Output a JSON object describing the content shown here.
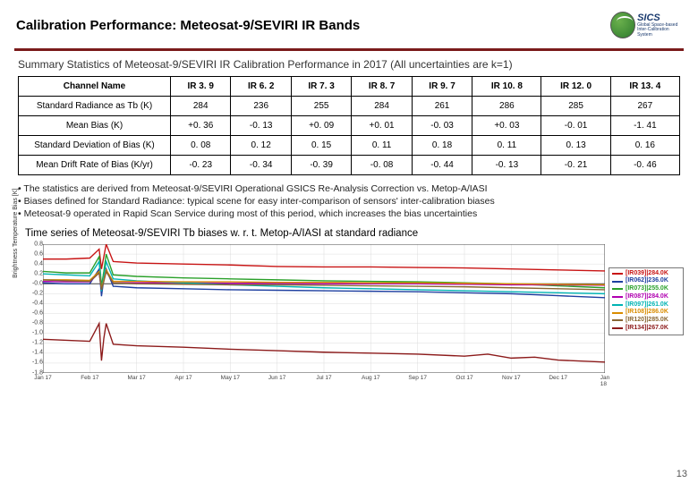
{
  "title": "Calibration Performance: Meteosat-9/SEVIRI IR Bands",
  "logo": {
    "acronym": "SICS",
    "sub1": "Global Space-based",
    "sub2": "Inter-Calibration System"
  },
  "subtitle": "Summary Statistics of Meteosat-9/SEVIRI IR Calibration Performance in 2017 (All uncertainties are k=1)",
  "table": {
    "header": [
      "Channel Name",
      "IR 3. 9",
      "IR 6. 2",
      "IR 7. 3",
      "IR 8. 7",
      "IR 9. 7",
      "IR 10. 8",
      "IR 12. 0",
      "IR 13. 4"
    ],
    "rows": [
      [
        "Standard Radiance as Tb (K)",
        "284",
        "236",
        "255",
        "284",
        "261",
        "286",
        "285",
        "267"
      ],
      [
        "Mean Bias (K)",
        "+0. 36",
        "-0. 13",
        "+0. 09",
        "+0. 01",
        "-0. 03",
        "+0. 03",
        "-0. 01",
        "-1. 41"
      ],
      [
        "Standard Deviation of Bias (K)",
        "0. 08",
        "0. 12",
        "0. 15",
        "0. 11",
        "0. 18",
        "0. 11",
        "0. 13",
        "0. 16"
      ],
      [
        "Mean Drift Rate of Bias (K/yr)",
        "-0. 23",
        "-0. 34",
        "-0. 39",
        "-0. 08",
        "-0. 44",
        "-0. 13",
        "-0. 21",
        "-0. 46"
      ]
    ]
  },
  "notes": [
    "The statistics are derived from Meteosat-9/SEVIRI Operational GSICS Re-Analysis Correction vs. Metop-A/IASI",
    "Biases defined for Standard Radiance: typical scene for easy inter-comparison of sensors' inter-calibration biases",
    "Meteosat-9 operated in Rapid Scan Service during most of this period, which increases the bias uncertainties"
  ],
  "chart": {
    "caption": "Time series of Meteosat-9/SEVIRI Tb biases w. r. t. Metop-A/IASI at standard radiance",
    "ylabel": "Brightness Temperature Bias [K]",
    "ylim": [
      -1.8,
      0.8
    ],
    "ytick_step": 0.2,
    "xlim": [
      0,
      12
    ],
    "xticks": [
      "Jan 17",
      "Feb 17",
      "Mar 17",
      "Apr 17",
      "May 17",
      "Jun 17",
      "Jul 17",
      "Aug 17",
      "Sep 17",
      "Oct 17",
      "Nov 17",
      "Dec 17",
      "Jan 18"
    ],
    "grid_color": "#dddddd",
    "axis_color": "#444444",
    "lines": [
      {
        "label": "[IR039]|284.0K",
        "color": "#c81414",
        "data": [
          [
            0,
            0.5
          ],
          [
            0.5,
            0.5
          ],
          [
            1.0,
            0.52
          ],
          [
            1.2,
            0.7
          ],
          [
            1.25,
            0.3
          ],
          [
            1.3,
            0.55
          ],
          [
            1.35,
            0.8
          ],
          [
            1.5,
            0.45
          ],
          [
            2,
            0.42
          ],
          [
            3,
            0.4
          ],
          [
            4,
            0.38
          ],
          [
            5,
            0.35
          ],
          [
            6,
            0.34
          ],
          [
            7,
            0.34
          ],
          [
            8,
            0.33
          ],
          [
            9,
            0.32
          ],
          [
            10,
            0.3
          ],
          [
            11,
            0.28
          ],
          [
            12,
            0.26
          ]
        ]
      },
      {
        "label": "[IR062]|236.0K",
        "color": "#1e3fa0",
        "data": [
          [
            0,
            0.02
          ],
          [
            0.5,
            0.0
          ],
          [
            1.0,
            0.0
          ],
          [
            1.2,
            0.3
          ],
          [
            1.25,
            -0.25
          ],
          [
            1.3,
            0.1
          ],
          [
            1.35,
            0.3
          ],
          [
            1.5,
            -0.05
          ],
          [
            2,
            -0.08
          ],
          [
            3,
            -0.1
          ],
          [
            4,
            -0.12
          ],
          [
            5,
            -0.13
          ],
          [
            6,
            -0.14
          ],
          [
            7,
            -0.15
          ],
          [
            8,
            -0.16
          ],
          [
            9,
            -0.18
          ],
          [
            10,
            -0.2
          ],
          [
            11,
            -0.24
          ],
          [
            12,
            -0.28
          ]
        ]
      },
      {
        "label": "[IR073]|255.0K",
        "color": "#2aa02a",
        "data": [
          [
            0,
            0.25
          ],
          [
            0.5,
            0.22
          ],
          [
            1.0,
            0.22
          ],
          [
            1.2,
            0.55
          ],
          [
            1.25,
            -0.05
          ],
          [
            1.3,
            0.25
          ],
          [
            1.35,
            0.6
          ],
          [
            1.5,
            0.18
          ],
          [
            2,
            0.15
          ],
          [
            3,
            0.12
          ],
          [
            4,
            0.1
          ],
          [
            5,
            0.08
          ],
          [
            6,
            0.06
          ],
          [
            7,
            0.05
          ],
          [
            8,
            0.04
          ],
          [
            9,
            0.02
          ],
          [
            10,
            0.0
          ],
          [
            11,
            -0.04
          ],
          [
            12,
            -0.08
          ]
        ]
      },
      {
        "label": "[IR087]|284.0K",
        "color": "#b000b0",
        "data": [
          [
            0,
            0.05
          ],
          [
            0.5,
            0.04
          ],
          [
            1.0,
            0.04
          ],
          [
            1.2,
            0.22
          ],
          [
            1.25,
            -0.12
          ],
          [
            1.3,
            0.06
          ],
          [
            1.35,
            0.25
          ],
          [
            1.5,
            0.02
          ],
          [
            2,
            0.02
          ],
          [
            3,
            0.02
          ],
          [
            4,
            0.01
          ],
          [
            5,
            0.01
          ],
          [
            6,
            0.0
          ],
          [
            7,
            0.0
          ],
          [
            8,
            0.0
          ],
          [
            9,
            -0.01
          ],
          [
            10,
            -0.02
          ],
          [
            11,
            -0.02
          ],
          [
            12,
            -0.03
          ]
        ]
      },
      {
        "label": "[IR097]|261.0K",
        "color": "#00b3b3",
        "data": [
          [
            0,
            0.2
          ],
          [
            0.5,
            0.18
          ],
          [
            1.0,
            0.16
          ],
          [
            1.2,
            0.45
          ],
          [
            1.25,
            -0.15
          ],
          [
            1.3,
            0.15
          ],
          [
            1.35,
            0.45
          ],
          [
            1.5,
            0.1
          ],
          [
            2,
            0.06
          ],
          [
            3,
            0.02
          ],
          [
            4,
            -0.02
          ],
          [
            5,
            -0.05
          ],
          [
            6,
            -0.08
          ],
          [
            7,
            -0.1
          ],
          [
            8,
            -0.12
          ],
          [
            9,
            -0.14
          ],
          [
            10,
            -0.16
          ],
          [
            11,
            -0.18
          ],
          [
            12,
            -0.2
          ]
        ]
      },
      {
        "label": "[IR108]|286.0K",
        "color": "#d98c00",
        "data": [
          [
            0,
            0.08
          ],
          [
            0.5,
            0.08
          ],
          [
            1.0,
            0.07
          ],
          [
            1.2,
            0.25
          ],
          [
            1.25,
            -0.1
          ],
          [
            1.3,
            0.08
          ],
          [
            1.35,
            0.28
          ],
          [
            1.5,
            0.05
          ],
          [
            2,
            0.05
          ],
          [
            3,
            0.04
          ],
          [
            4,
            0.04
          ],
          [
            5,
            0.03
          ],
          [
            6,
            0.03
          ],
          [
            7,
            0.02
          ],
          [
            8,
            0.02
          ],
          [
            9,
            0.01
          ],
          [
            10,
            0.0
          ],
          [
            11,
            -0.01
          ],
          [
            12,
            -0.02
          ]
        ]
      },
      {
        "label": "[IR120]|285.0K",
        "color": "#886633",
        "data": [
          [
            0,
            0.08
          ],
          [
            0.5,
            0.06
          ],
          [
            1.0,
            0.05
          ],
          [
            1.2,
            0.22
          ],
          [
            1.25,
            -0.12
          ],
          [
            1.3,
            0.05
          ],
          [
            1.35,
            0.25
          ],
          [
            1.5,
            0.02
          ],
          [
            2,
            0.0
          ],
          [
            3,
            -0.01
          ],
          [
            4,
            -0.02
          ],
          [
            5,
            -0.02
          ],
          [
            6,
            -0.03
          ],
          [
            7,
            -0.04
          ],
          [
            8,
            -0.05
          ],
          [
            9,
            -0.06
          ],
          [
            10,
            -0.08
          ],
          [
            11,
            -0.1
          ],
          [
            12,
            -0.12
          ]
        ]
      },
      {
        "label": "[IR134]|267.0K",
        "color": "#8c1a1a",
        "data": [
          [
            0,
            -1.12
          ],
          [
            0.5,
            -1.14
          ],
          [
            1.0,
            -1.16
          ],
          [
            1.2,
            -0.8
          ],
          [
            1.25,
            -1.55
          ],
          [
            1.3,
            -1.1
          ],
          [
            1.35,
            -0.8
          ],
          [
            1.5,
            -1.22
          ],
          [
            2,
            -1.25
          ],
          [
            3,
            -1.28
          ],
          [
            4,
            -1.32
          ],
          [
            5,
            -1.35
          ],
          [
            6,
            -1.38
          ],
          [
            7,
            -1.4
          ],
          [
            8,
            -1.42
          ],
          [
            9,
            -1.46
          ],
          [
            9.5,
            -1.42
          ],
          [
            10,
            -1.5
          ],
          [
            10.5,
            -1.48
          ],
          [
            11,
            -1.54
          ],
          [
            12,
            -1.58
          ]
        ]
      }
    ],
    "legend_label_fontsize": 7
  },
  "page_number": "13"
}
